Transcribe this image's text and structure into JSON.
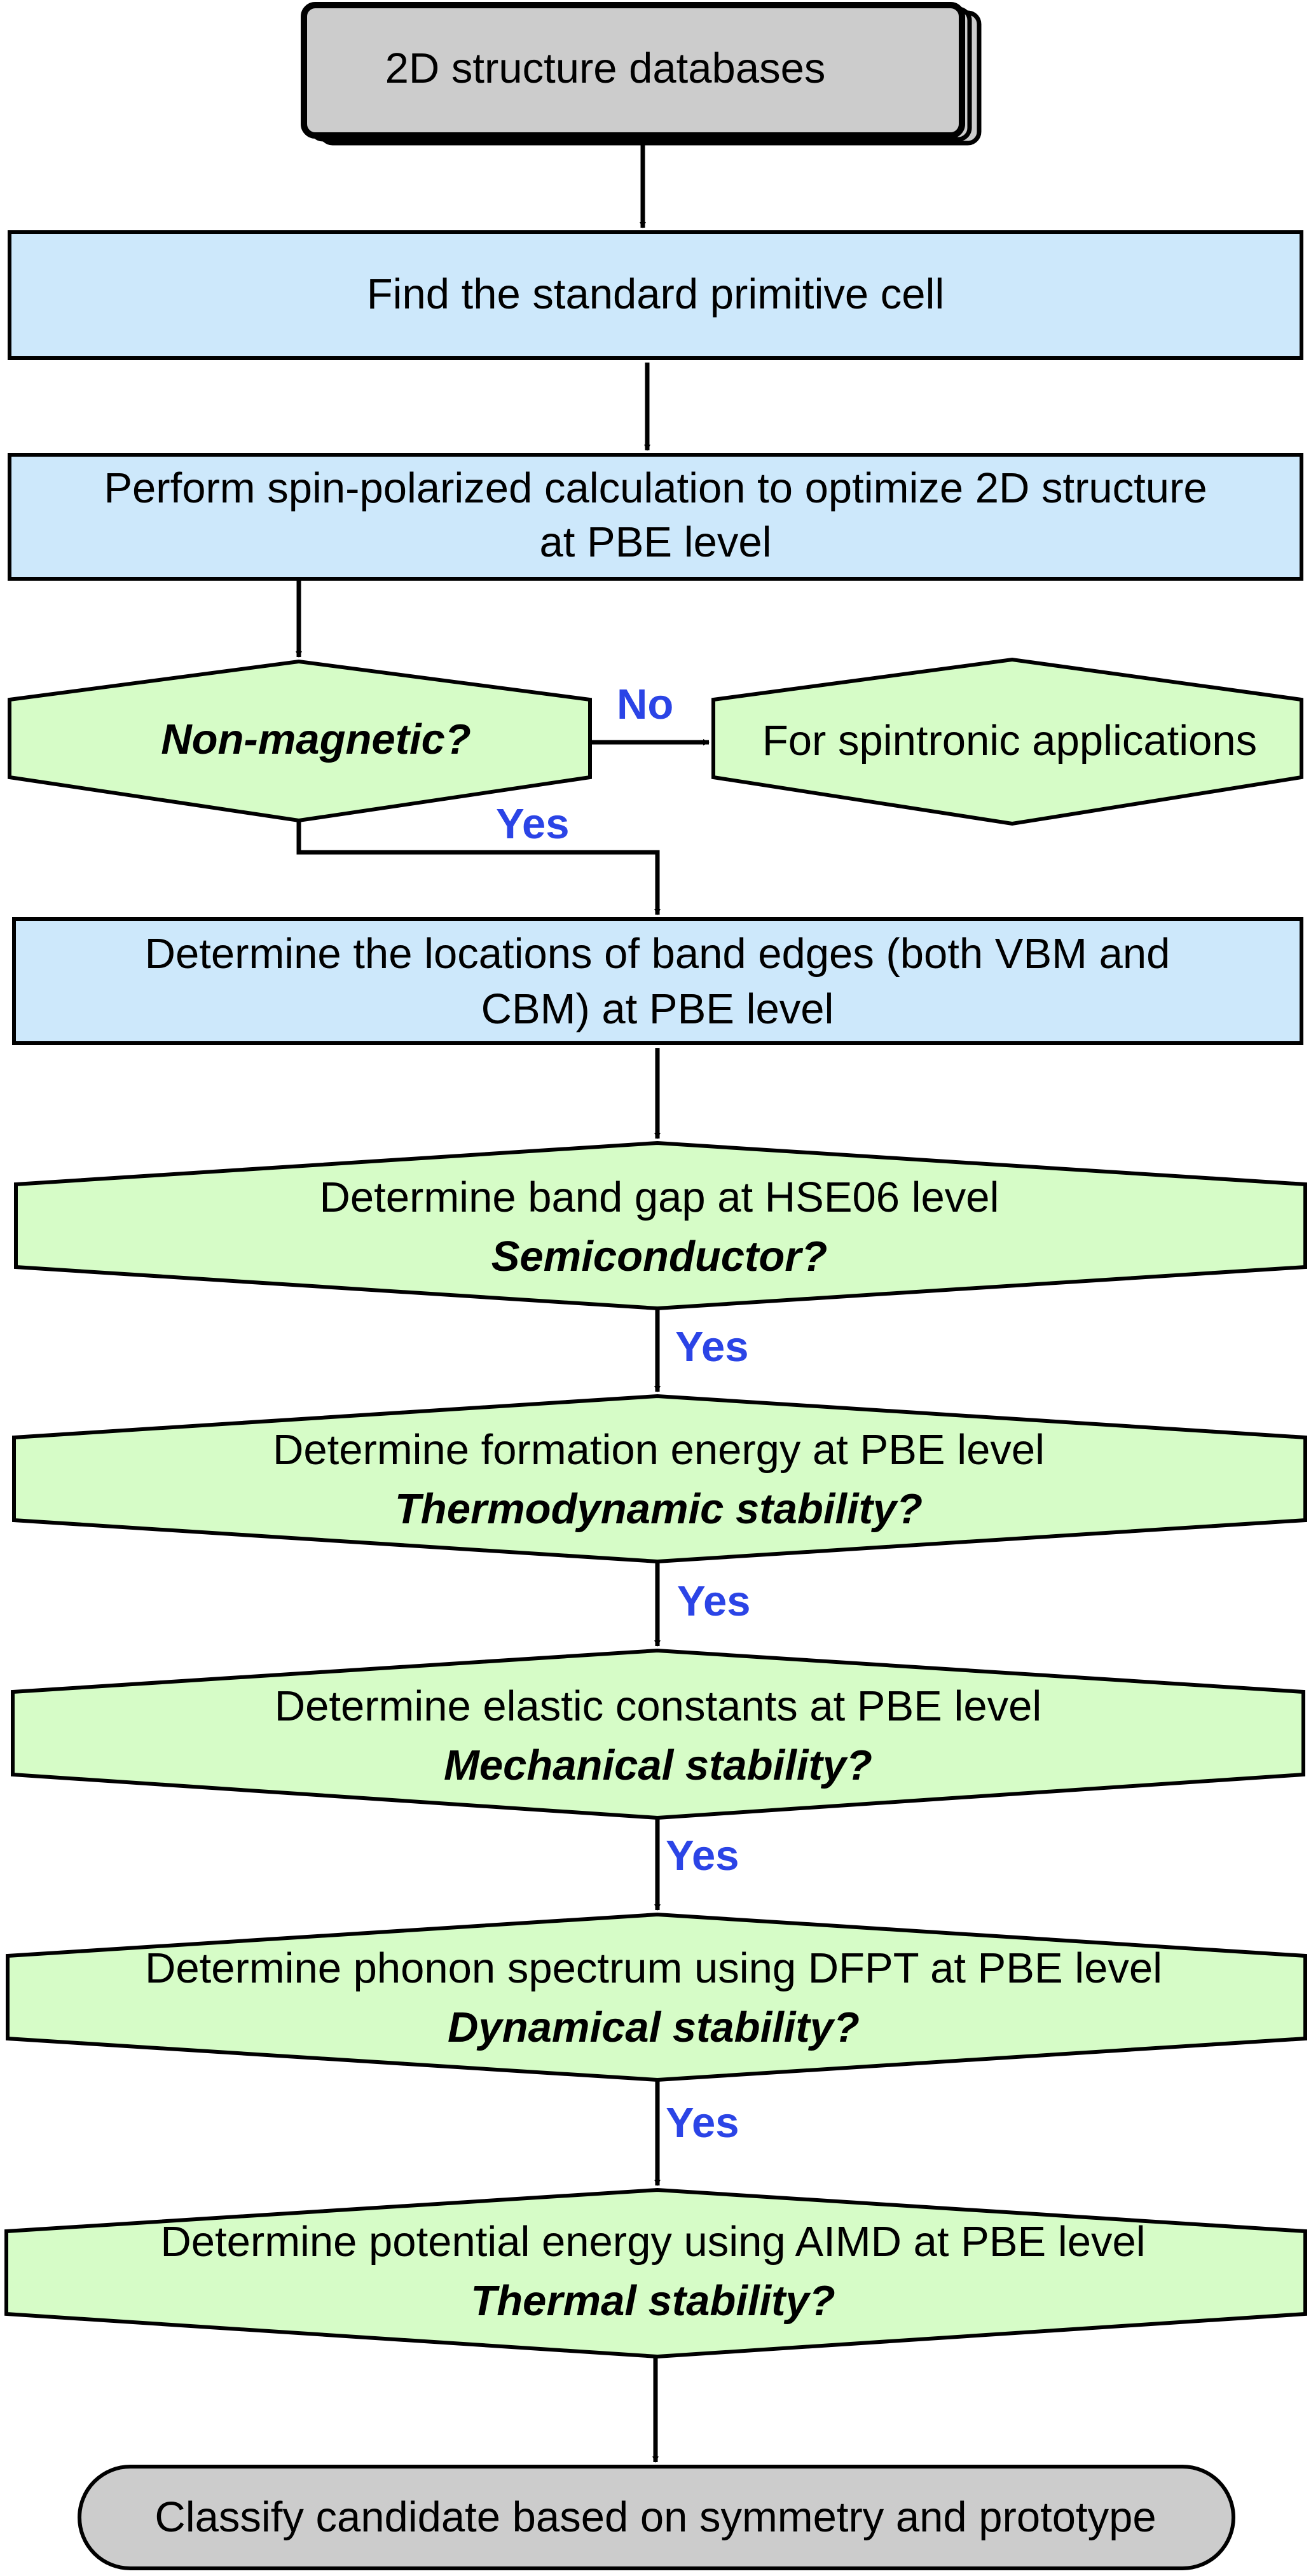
{
  "colors": {
    "process_fill": "#cde8fb",
    "decision_fill": "#d6fcc7",
    "terminal_fill": "#cccccc",
    "stroke": "#000000",
    "label": "#2b44e6"
  },
  "nodes": {
    "databases": {
      "text": "2D structure databases"
    },
    "primitive_cell": {
      "text": "Find the standard primitive cell"
    },
    "spin_polarized": {
      "line1": "Perform spin-polarized calculation to optimize 2D structure",
      "line2": "at PBE level"
    },
    "non_magnetic": {
      "question": "Non-magnetic?"
    },
    "spintronic": {
      "text": "For spintronic applications"
    },
    "band_edges": {
      "line1": "Determine the locations of band edges (both VBM and",
      "line2": "CBM) at PBE level"
    },
    "band_gap": {
      "line1": "Determine band gap at HSE06 level",
      "question": "Semiconductor?"
    },
    "formation_energy": {
      "line1": "Determine formation energy at PBE level",
      "question": "Thermodynamic stability?"
    },
    "elastic_constants": {
      "line1": "Determine elastic constants at PBE level",
      "question": "Mechanical stability?"
    },
    "phonon": {
      "line1": "Determine phonon spectrum using DFPT at PBE level",
      "question": "Dynamical stability?"
    },
    "potential_energy": {
      "line1": "Determine potential energy using AIMD at PBE level",
      "question": "Thermal stability?"
    },
    "classify": {
      "text": "Classify candidate based on symmetry and prototype"
    }
  },
  "edge_labels": {
    "no": "No",
    "yes_magnetic": "Yes",
    "yes_semiconductor": "Yes",
    "yes_thermodynamic": "Yes",
    "yes_mechanical": "Yes",
    "yes_dynamical": "Yes"
  }
}
